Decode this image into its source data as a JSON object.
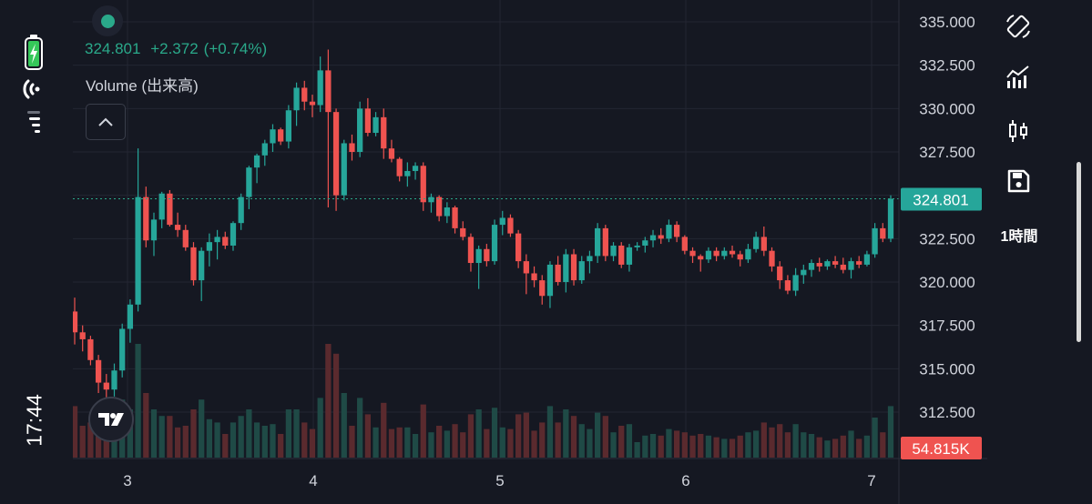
{
  "status_bar": {
    "time": "17:44",
    "icons": [
      "battery-charging-icon",
      "wifi-icon",
      "cellular-signal-icon"
    ]
  },
  "legend": {
    "last": "324.801",
    "change": "+2.372",
    "change_pct": "(+0.74%)",
    "color": "#2aa98a"
  },
  "volume_indicator": {
    "label": "Volume (出来高)",
    "last_volume": "54.815K"
  },
  "price_axis": {
    "ticks": [
      "335.000",
      "332.500",
      "330.000",
      "327.500",
      "325.000",
      "322.500",
      "320.000",
      "317.500",
      "315.000",
      "312.500"
    ],
    "current_price_label": "324.801"
  },
  "time_axis": {
    "ticks": [
      "3",
      "4",
      "5",
      "6",
      "7"
    ]
  },
  "toolbar": {
    "interval_label": "1時間",
    "icons": [
      "rotate-screen-icon",
      "indicators-icon",
      "candle-type-icon",
      "save-icon"
    ]
  },
  "colors": {
    "up": "#26a69a",
    "down": "#ef5350",
    "background": "#151822",
    "grid": "#232632",
    "accent": "#2aa98a"
  },
  "chart_data": {
    "type": "candlestick",
    "x_ticks": [
      "3",
      "4",
      "5",
      "6",
      "7"
    ],
    "ylim": [
      311,
      336
    ],
    "candles": [
      [
        318.3,
        319.1,
        316.4,
        317.1
      ],
      [
        317.1,
        317.5,
        316.0,
        316.7
      ],
      [
        316.7,
        316.9,
        315.2,
        315.5
      ],
      [
        315.5,
        315.8,
        313.6,
        314.2
      ],
      [
        314.2,
        314.7,
        313.3,
        313.8
      ],
      [
        313.8,
        315.3,
        313.4,
        314.9
      ],
      [
        314.9,
        317.6,
        314.5,
        317.3
      ],
      [
        317.3,
        319.0,
        316.5,
        318.7
      ],
      [
        318.7,
        327.7,
        318.3,
        324.9
      ],
      [
        324.9,
        325.5,
        322.0,
        322.4
      ],
      [
        322.4,
        324.0,
        321.5,
        323.6
      ],
      [
        323.6,
        325.2,
        323.1,
        325.1
      ],
      [
        325.1,
        325.3,
        323.2,
        323.3
      ],
      [
        323.3,
        324.0,
        322.6,
        323.0
      ],
      [
        323.0,
        323.3,
        321.8,
        322.0
      ],
      [
        322.0,
        322.3,
        319.8,
        320.1
      ],
      [
        320.1,
        322.0,
        318.9,
        321.8
      ],
      [
        321.8,
        322.8,
        320.9,
        322.3
      ],
      [
        322.3,
        323.0,
        321.3,
        322.6
      ],
      [
        322.6,
        322.9,
        321.9,
        322.1
      ],
      [
        322.1,
        323.5,
        321.8,
        323.4
      ],
      [
        323.4,
        325.1,
        323.0,
        324.9
      ],
      [
        324.9,
        326.7,
        324.2,
        326.6
      ],
      [
        326.6,
        327.4,
        325.7,
        327.3
      ],
      [
        327.3,
        328.2,
        326.7,
        328.0
      ],
      [
        328.0,
        329.1,
        327.5,
        328.8
      ],
      [
        328.8,
        328.9,
        327.9,
        328.1
      ],
      [
        328.1,
        330.2,
        327.7,
        329.9
      ],
      [
        329.9,
        331.5,
        329.0,
        331.2
      ],
      [
        331.2,
        331.6,
        329.9,
        330.4
      ],
      [
        330.4,
        330.8,
        329.5,
        330.2
      ],
      [
        330.2,
        333.0,
        329.8,
        332.2
      ],
      [
        332.2,
        333.4,
        324.3,
        329.8
      ],
      [
        329.8,
        330.0,
        324.1,
        325.0
      ],
      [
        325.0,
        328.2,
        324.7,
        328.0
      ],
      [
        328.0,
        328.5,
        327.0,
        327.5
      ],
      [
        327.5,
        330.4,
        327.2,
        330.0
      ],
      [
        330.0,
        330.6,
        328.4,
        328.6
      ],
      [
        328.6,
        329.8,
        328.4,
        329.5
      ],
      [
        329.5,
        330.0,
        327.1,
        327.7
      ],
      [
        327.7,
        328.2,
        326.9,
        327.1
      ],
      [
        327.1,
        327.2,
        325.8,
        326.1
      ],
      [
        326.1,
        326.9,
        325.5,
        326.4
      ],
      [
        326.4,
        326.9,
        325.9,
        326.7
      ],
      [
        326.7,
        326.9,
        324.1,
        324.6
      ],
      [
        324.6,
        325.1,
        324.0,
        324.9
      ],
      [
        324.9,
        325.0,
        323.5,
        323.8
      ],
      [
        323.8,
        324.6,
        323.4,
        324.3
      ],
      [
        324.3,
        324.4,
        322.8,
        323.1
      ],
      [
        323.1,
        323.5,
        322.4,
        322.6
      ],
      [
        322.6,
        322.8,
        320.6,
        321.1
      ],
      [
        321.1,
        322.1,
        319.6,
        321.9
      ],
      [
        321.9,
        322.2,
        320.9,
        321.2
      ],
      [
        321.2,
        323.6,
        321.0,
        323.3
      ],
      [
        323.3,
        324.1,
        322.7,
        323.7
      ],
      [
        323.7,
        323.9,
        322.6,
        322.8
      ],
      [
        322.8,
        323.0,
        320.8,
        321.2
      ],
      [
        321.2,
        321.6,
        319.3,
        320.5
      ],
      [
        320.5,
        320.9,
        319.7,
        320.1
      ],
      [
        320.1,
        320.4,
        318.7,
        319.2
      ],
      [
        319.2,
        321.2,
        318.5,
        321.0
      ],
      [
        321.0,
        321.5,
        319.8,
        320.0
      ],
      [
        320.0,
        321.9,
        319.4,
        321.6
      ],
      [
        321.6,
        321.9,
        319.8,
        320.1
      ],
      [
        320.1,
        321.5,
        319.9,
        321.2
      ],
      [
        321.2,
        321.8,
        320.5,
        321.5
      ],
      [
        321.5,
        323.4,
        321.1,
        323.1
      ],
      [
        323.1,
        323.3,
        321.2,
        321.5
      ],
      [
        321.5,
        322.3,
        321.2,
        322.1
      ],
      [
        322.1,
        322.3,
        320.8,
        321.0
      ],
      [
        321.0,
        322.2,
        320.6,
        322.0
      ],
      [
        322.0,
        322.3,
        321.8,
        322.1
      ],
      [
        322.1,
        322.6,
        321.7,
        322.4
      ],
      [
        322.4,
        323.0,
        322.0,
        322.7
      ],
      [
        322.7,
        323.1,
        322.2,
        322.5
      ],
      [
        322.5,
        323.6,
        322.3,
        323.3
      ],
      [
        323.3,
        323.5,
        322.3,
        322.6
      ],
      [
        322.6,
        322.7,
        321.6,
        321.8
      ],
      [
        321.8,
        322.0,
        321.1,
        321.5
      ],
      [
        321.5,
        321.6,
        320.6,
        321.3
      ],
      [
        321.3,
        322.0,
        321.1,
        321.8
      ],
      [
        321.8,
        322.0,
        321.2,
        321.5
      ],
      [
        321.5,
        322.0,
        321.3,
        321.8
      ],
      [
        321.8,
        322.1,
        321.4,
        321.6
      ],
      [
        321.6,
        321.8,
        320.9,
        321.3
      ],
      [
        321.3,
        322.2,
        321.1,
        321.9
      ],
      [
        321.9,
        322.9,
        321.7,
        322.6
      ],
      [
        322.6,
        323.2,
        321.5,
        321.8
      ],
      [
        321.8,
        322.0,
        320.6,
        320.9
      ],
      [
        320.9,
        321.2,
        319.6,
        320.1
      ],
      [
        320.1,
        320.4,
        319.3,
        319.5
      ],
      [
        319.5,
        320.8,
        319.2,
        320.4
      ],
      [
        320.4,
        321.0,
        319.9,
        320.7
      ],
      [
        320.7,
        321.3,
        320.3,
        321.1
      ],
      [
        321.1,
        321.4,
        320.6,
        320.9
      ],
      [
        320.9,
        321.3,
        320.7,
        321.2
      ],
      [
        321.2,
        321.5,
        320.8,
        321.0
      ],
      [
        321.0,
        321.4,
        320.5,
        320.7
      ],
      [
        320.7,
        321.4,
        320.2,
        321.2
      ],
      [
        321.2,
        321.5,
        320.8,
        321.0
      ],
      [
        321.0,
        321.8,
        320.9,
        321.6
      ],
      [
        321.6,
        323.4,
        321.4,
        323.1
      ],
      [
        323.1,
        323.4,
        322.3,
        322.5
      ],
      [
        322.5,
        325.0,
        322.3,
        324.8
      ]
    ],
    "volume_unit": "K",
    "last_volume": 54.815
  }
}
